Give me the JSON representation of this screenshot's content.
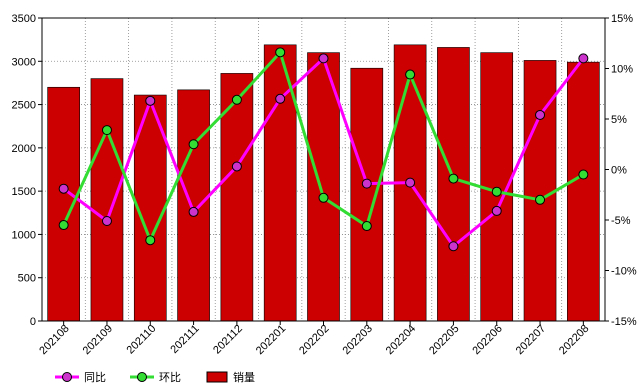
{
  "chart_data": {
    "type": "bar",
    "categories": [
      "202108",
      "202109",
      "202110",
      "202111",
      "202112",
      "202201",
      "202202",
      "202203",
      "202204",
      "202205",
      "202206",
      "202207",
      "202208"
    ],
    "series": [
      {
        "name": "销量",
        "type": "bar",
        "axis": "left",
        "values": [
          2700,
          2800,
          2610,
          2670,
          2860,
          3190,
          3100,
          2920,
          3190,
          3160,
          3100,
          3010,
          2990
        ],
        "color": "#cc0000"
      },
      {
        "name": "同比",
        "type": "line",
        "axis": "right",
        "values": [
          -1.9,
          -5.1,
          6.8,
          -4.2,
          0.3,
          7.0,
          11.0,
          -1.4,
          -1.3,
          -7.6,
          -4.1,
          5.4,
          11.0
        ],
        "color": "#ff00ff",
        "marker_fill": "#cc33cc"
      },
      {
        "name": "环比",
        "type": "line",
        "axis": "right",
        "values": [
          -5.5,
          3.9,
          -7.0,
          2.5,
          6.9,
          11.6,
          -2.8,
          -5.6,
          9.4,
          -0.9,
          -2.2,
          -3.0,
          -0.5
        ],
        "color": "#33dd33",
        "marker_fill": "#33dd33"
      }
    ],
    "y_left": {
      "min": 0,
      "max": 3500,
      "ticks": [
        "0",
        "500",
        "1000",
        "1500",
        "2000",
        "2500",
        "3000",
        "3500"
      ]
    },
    "y_right": {
      "min": -15,
      "max": 15,
      "ticks": [
        "-15%",
        "-10%",
        "-5%",
        "0%",
        "5%",
        "10%",
        "15%"
      ]
    },
    "grid": true,
    "legend_position": "bottom-left"
  }
}
